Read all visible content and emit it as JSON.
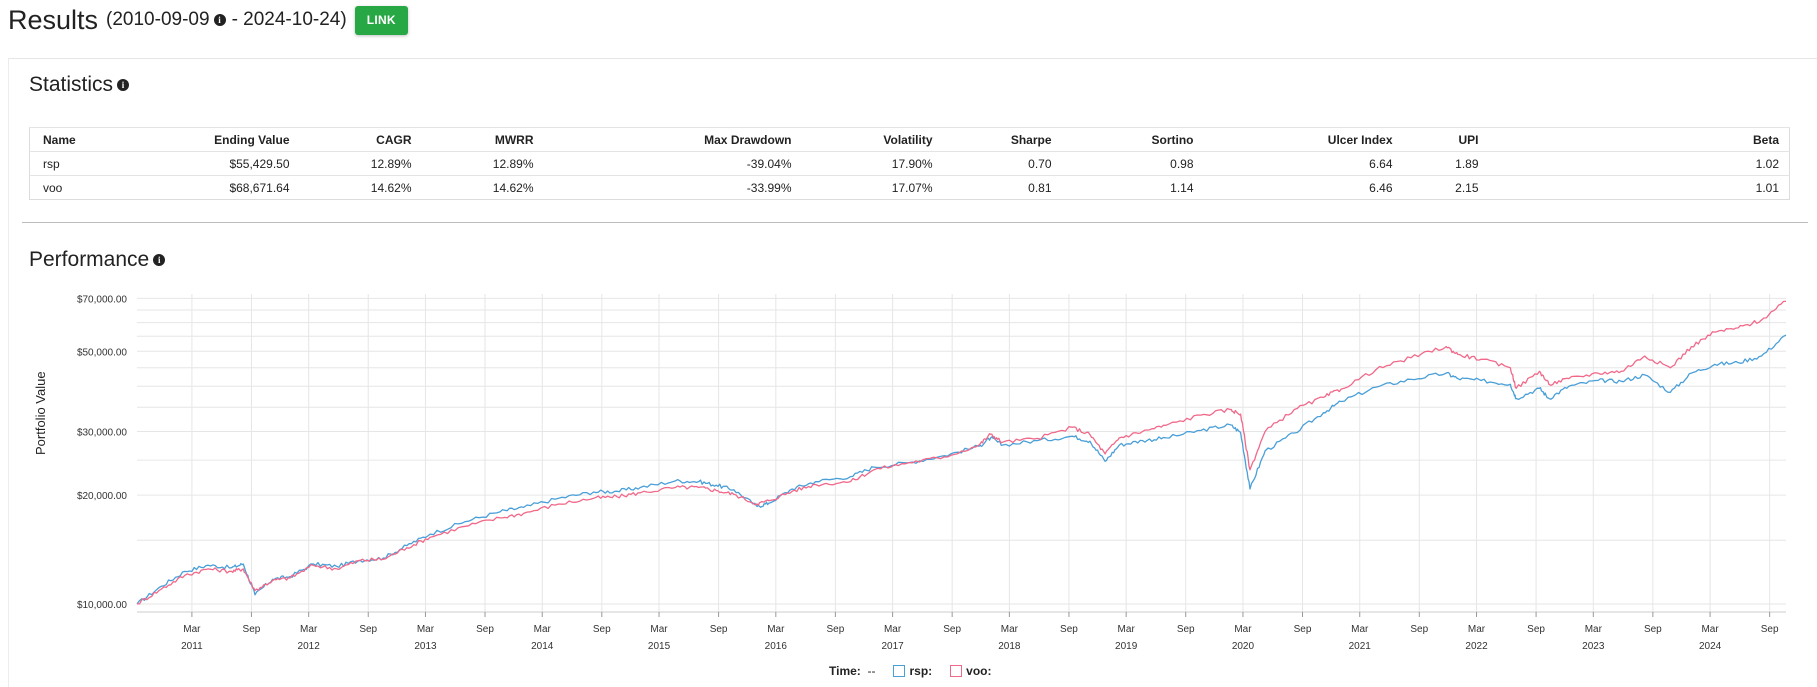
{
  "header": {
    "title": "Results",
    "range_start": "(2010-09-09",
    "range_end": "- 2024-10-24)",
    "link_label": "LINK"
  },
  "statistics": {
    "title": "Statistics",
    "columns": [
      "Name",
      "Ending Value",
      "CAGR",
      "MWRR",
      "Max Drawdown",
      "Volatility",
      "Sharpe",
      "Sortino",
      "Ulcer Index",
      "UPI",
      "Beta"
    ],
    "rows": [
      [
        "rsp",
        "$55,429.50",
        "12.89%",
        "12.89%",
        "-39.04%",
        "17.90%",
        "0.70",
        "0.98",
        "6.64",
        "1.89",
        "1.02"
      ],
      [
        "voo",
        "$68,671.64",
        "14.62%",
        "14.62%",
        "-33.99%",
        "17.07%",
        "0.81",
        "1.14",
        "6.46",
        "2.15",
        "1.01"
      ]
    ]
  },
  "performance": {
    "title": "Performance",
    "legend": {
      "time_label": "Time:",
      "time_value": "--",
      "series": [
        {
          "name": "rsp:",
          "color": "#4a9fd8"
        },
        {
          "name": "voo:",
          "color": "#f0698a"
        }
      ]
    }
  },
  "chart_data": {
    "type": "line",
    "title": "Performance",
    "xlabel": "",
    "ylabel": "Portfolio Value",
    "yscale": "log",
    "ylim": [
      9500,
      72000
    ],
    "y_ticks": [
      10000,
      20000,
      30000,
      50000,
      70000
    ],
    "y_tick_labels": [
      "$10,000.00",
      "$20,000.00",
      "$30,000.00",
      "$50,000.00",
      "$70,000.00"
    ],
    "x_range": [
      2010.69,
      2024.81
    ],
    "x_ticks": [
      {
        "t": 2011.16,
        "label": "Mar",
        "year": "2011"
      },
      {
        "t": 2011.67,
        "label": "Sep",
        "year": ""
      },
      {
        "t": 2012.16,
        "label": "Mar",
        "year": "2012"
      },
      {
        "t": 2012.67,
        "label": "Sep",
        "year": ""
      },
      {
        "t": 2013.16,
        "label": "Mar",
        "year": "2013"
      },
      {
        "t": 2013.67,
        "label": "Sep",
        "year": ""
      },
      {
        "t": 2014.16,
        "label": "Mar",
        "year": "2014"
      },
      {
        "t": 2014.67,
        "label": "Sep",
        "year": ""
      },
      {
        "t": 2015.16,
        "label": "Mar",
        "year": "2015"
      },
      {
        "t": 2015.67,
        "label": "Sep",
        "year": ""
      },
      {
        "t": 2016.16,
        "label": "Mar",
        "year": "2016"
      },
      {
        "t": 2016.67,
        "label": "Sep",
        "year": ""
      },
      {
        "t": 2017.16,
        "label": "Mar",
        "year": "2017"
      },
      {
        "t": 2017.67,
        "label": "Sep",
        "year": ""
      },
      {
        "t": 2018.16,
        "label": "Mar",
        "year": "2018"
      },
      {
        "t": 2018.67,
        "label": "Sep",
        "year": ""
      },
      {
        "t": 2019.16,
        "label": "Mar",
        "year": "2019"
      },
      {
        "t": 2019.67,
        "label": "Sep",
        "year": ""
      },
      {
        "t": 2020.16,
        "label": "Mar",
        "year": "2020"
      },
      {
        "t": 2020.67,
        "label": "Sep",
        "year": ""
      },
      {
        "t": 2021.16,
        "label": "Mar",
        "year": "2021"
      },
      {
        "t": 2021.67,
        "label": "Sep",
        "year": ""
      },
      {
        "t": 2022.16,
        "label": "Mar",
        "year": "2022"
      },
      {
        "t": 2022.67,
        "label": "Sep",
        "year": ""
      },
      {
        "t": 2023.16,
        "label": "Mar",
        "year": "2023"
      },
      {
        "t": 2023.67,
        "label": "Sep",
        "year": ""
      },
      {
        "t": 2024.16,
        "label": "Mar",
        "year": "2024"
      },
      {
        "t": 2024.67,
        "label": "Sep",
        "year": ""
      }
    ],
    "series": [
      {
        "name": "rsp",
        "color": "#4a9fd8",
        "x": [
          2010.69,
          2010.9,
          2011.1,
          2011.3,
          2011.5,
          2011.6,
          2011.7,
          2011.85,
          2012.0,
          2012.2,
          2012.4,
          2012.6,
          2012.8,
          2013.0,
          2013.2,
          2013.5,
          2013.8,
          2014.0,
          2014.3,
          2014.6,
          2014.8,
          2015.0,
          2015.3,
          2015.5,
          2015.65,
          2015.8,
          2016.0,
          2016.1,
          2016.3,
          2016.5,
          2016.8,
          2017.0,
          2017.3,
          2017.6,
          2017.9,
          2018.0,
          2018.1,
          2018.4,
          2018.7,
          2018.85,
          2018.98,
          2019.1,
          2019.3,
          2019.5,
          2019.8,
          2020.05,
          2020.14,
          2020.22,
          2020.35,
          2020.6,
          2020.85,
          2021.0,
          2021.3,
          2021.6,
          2021.9,
          2022.0,
          2022.2,
          2022.45,
          2022.5,
          2022.7,
          2022.78,
          2022.95,
          2023.2,
          2023.4,
          2023.6,
          2023.82,
          2024.0,
          2024.2,
          2024.4,
          2024.6,
          2024.81
        ],
        "y": [
          10000,
          11200,
          12300,
          12800,
          12600,
          12900,
          10600,
          11700,
          11900,
          12900,
          12700,
          13200,
          13400,
          14500,
          15600,
          16900,
          18000,
          18500,
          19600,
          20400,
          20500,
          21000,
          21900,
          21800,
          21300,
          20700,
          18600,
          19000,
          20800,
          21800,
          22500,
          23900,
          24600,
          25700,
          27300,
          28800,
          27500,
          28300,
          29100,
          28200,
          24800,
          27500,
          28300,
          28800,
          30200,
          31300,
          29800,
          20800,
          26500,
          29700,
          33800,
          36300,
          39800,
          41800,
          43500,
          42000,
          41500,
          40500,
          37000,
          39500,
          37000,
          40000,
          41500,
          41300,
          43000,
          38500,
          43500,
          46000,
          46500,
          48500,
          55429
        ]
      },
      {
        "name": "voo",
        "color": "#f0698a",
        "x": [
          2010.69,
          2010.9,
          2011.1,
          2011.3,
          2011.5,
          2011.6,
          2011.7,
          2011.85,
          2012.0,
          2012.2,
          2012.4,
          2012.6,
          2012.8,
          2013.0,
          2013.2,
          2013.5,
          2013.8,
          2014.0,
          2014.3,
          2014.6,
          2014.8,
          2015.0,
          2015.3,
          2015.5,
          2015.65,
          2015.8,
          2016.0,
          2016.1,
          2016.3,
          2016.5,
          2016.8,
          2017.0,
          2017.3,
          2017.6,
          2017.9,
          2018.0,
          2018.1,
          2018.4,
          2018.7,
          2018.85,
          2018.98,
          2019.1,
          2019.3,
          2019.5,
          2019.8,
          2020.05,
          2020.14,
          2020.22,
          2020.35,
          2020.6,
          2020.85,
          2021.0,
          2021.3,
          2021.6,
          2021.9,
          2022.0,
          2022.2,
          2022.45,
          2022.5,
          2022.7,
          2022.78,
          2022.95,
          2023.2,
          2023.4,
          2023.6,
          2023.82,
          2024.0,
          2024.2,
          2024.4,
          2024.6,
          2024.81
        ],
        "y": [
          10000,
          11000,
          12000,
          12500,
          12300,
          12500,
          10900,
          11600,
          11800,
          12800,
          12500,
          13200,
          13300,
          14300,
          15300,
          16400,
          17300,
          17800,
          18900,
          19600,
          19800,
          20300,
          21000,
          21000,
          20600,
          20100,
          18900,
          19300,
          20500,
          21400,
          21800,
          23500,
          24600,
          25500,
          27500,
          29500,
          28000,
          28700,
          30800,
          29400,
          26000,
          28800,
          30000,
          31200,
          33300,
          34500,
          33500,
          23500,
          30000,
          34500,
          37300,
          39300,
          44500,
          48000,
          51500,
          49000,
          47500,
          45000,
          39500,
          44000,
          40500,
          42000,
          43500,
          44000,
          48500,
          45000,
          51500,
          56500,
          58000,
          61000,
          68671
        ]
      }
    ]
  }
}
